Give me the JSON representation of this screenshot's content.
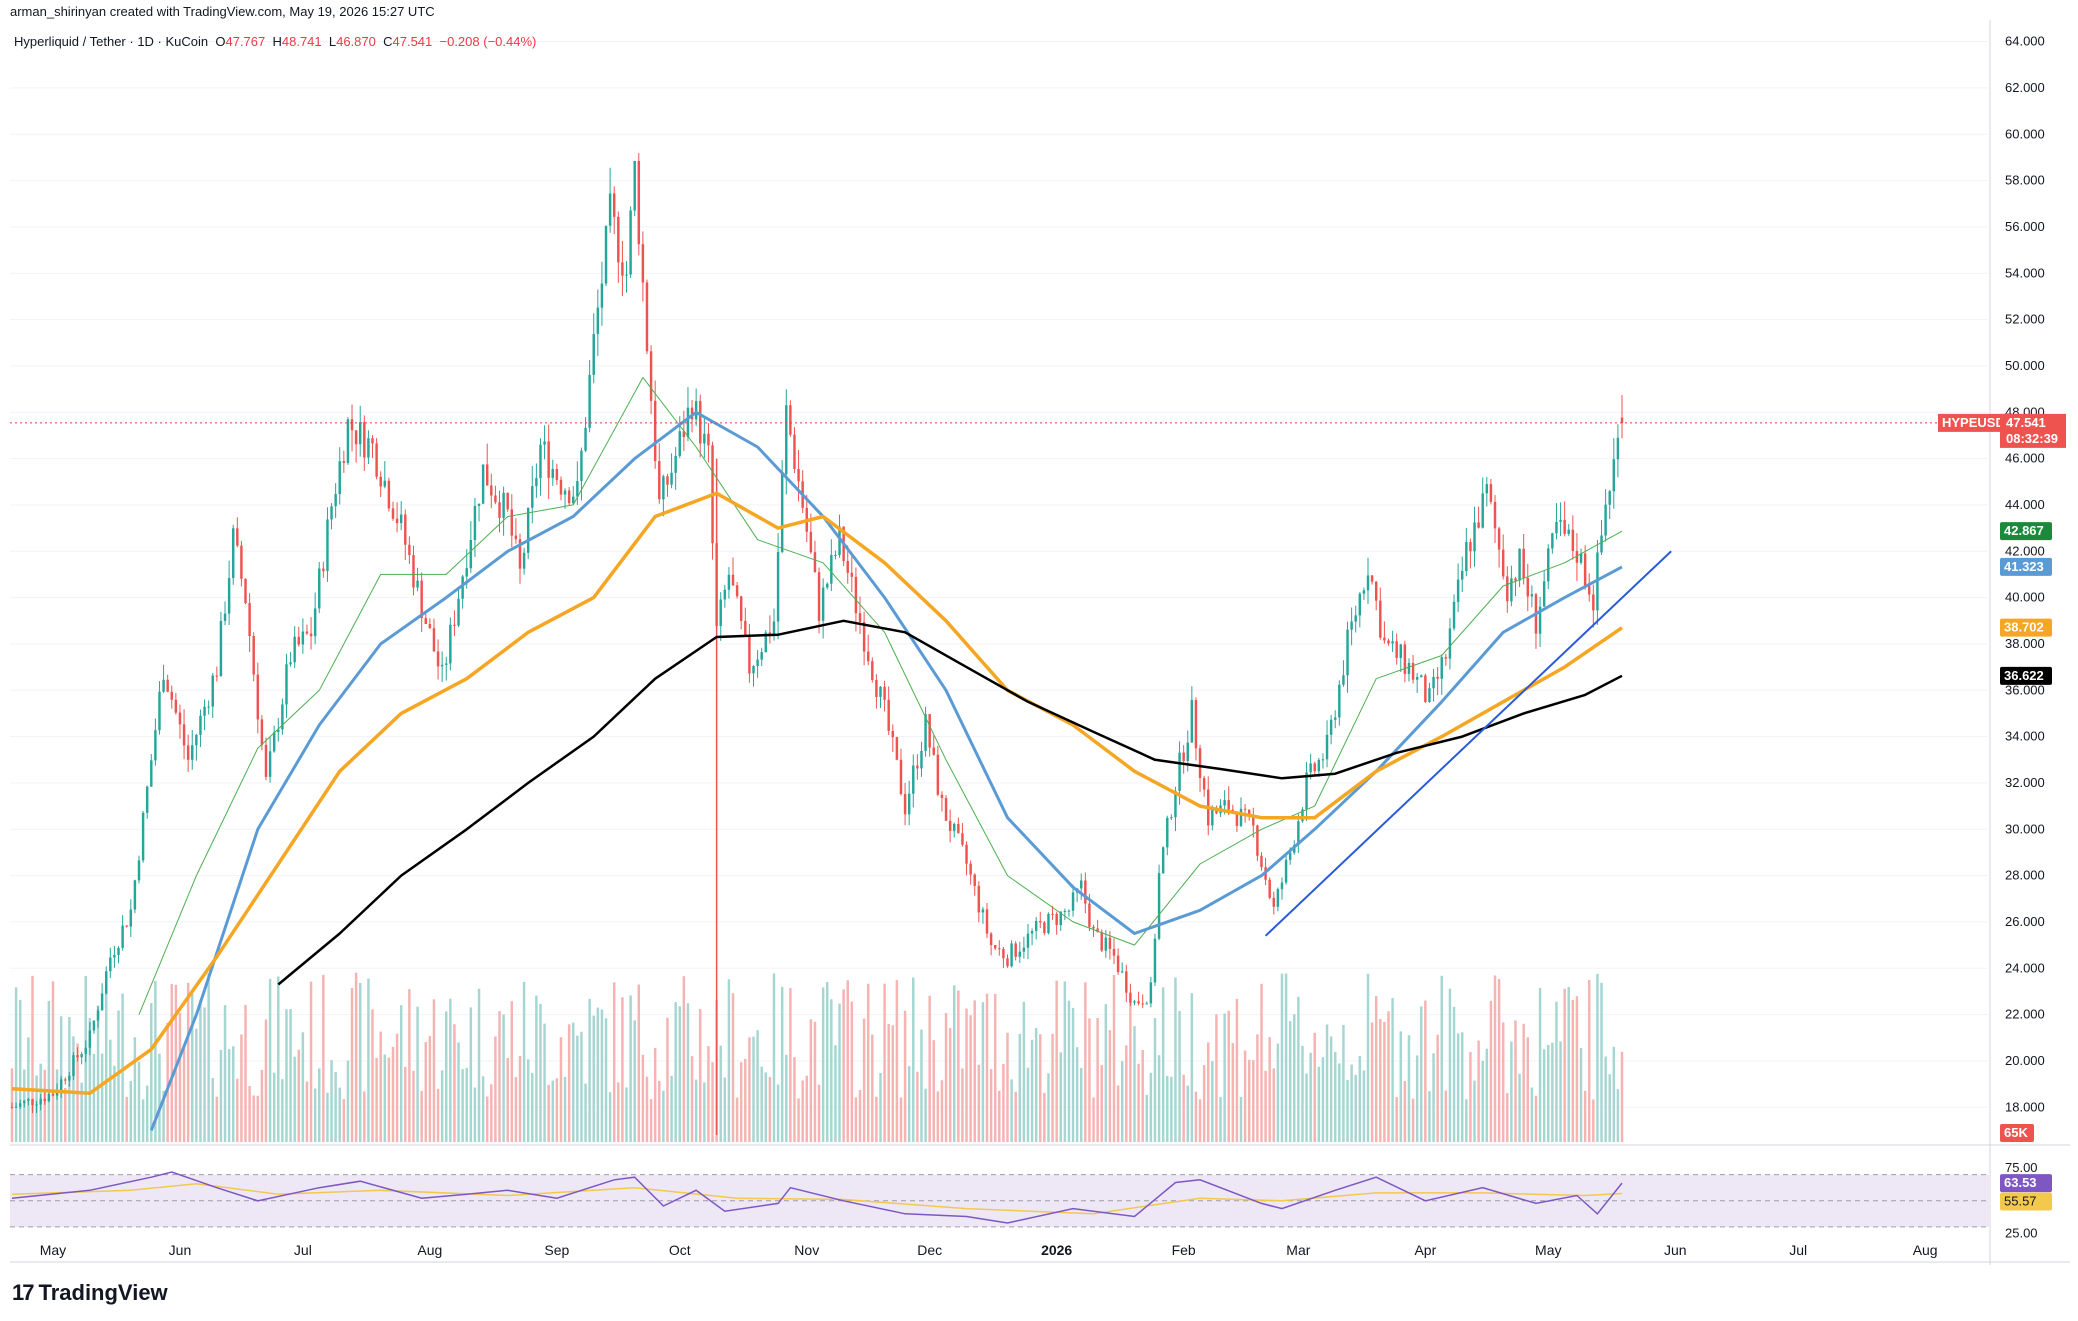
{
  "header": {
    "attribution": "arman_shirinyan created with TradingView.com, May 19, 2026 15:27 UTC"
  },
  "symbol": {
    "name": "Hyperliquid / Tether · 1D · KuCoin",
    "o_label": "O",
    "o": "47.767",
    "h_label": "H",
    "h": "48.741",
    "l_label": "L",
    "l": "46.870",
    "c_label": "C",
    "c": "47.541",
    "change": "−0.208 (−0.44%)"
  },
  "brand": {
    "logo_glyph": "17",
    "name": "TradingView"
  },
  "colors": {
    "up": "#26a69a",
    "down": "#ef5350",
    "ma_thin": "#4caf50",
    "ma_blue": "#5b9bd5",
    "ma_orange": "#f5a623",
    "ma_black": "#000000",
    "trendline": "#2a5bd7",
    "rsi": "#7e57c2",
    "rsi_ma": "#f2c94c",
    "rsi_band": "#ede7f6"
  },
  "chart_data": {
    "type": "candlestick",
    "symbol": "HYPEUSDT",
    "timeframe": "1D",
    "ylim": [
      16.5,
      64.5
    ],
    "y_ticks": [
      "64.000",
      "62.000",
      "60.000",
      "58.000",
      "56.000",
      "54.000",
      "52.000",
      "50.000",
      "48.000",
      "46.000",
      "44.000",
      "42.000",
      "40.000",
      "38.000",
      "36.000",
      "34.000",
      "32.000",
      "30.000",
      "28.000",
      "26.000",
      "24.000",
      "22.000",
      "20.000",
      "18.000"
    ],
    "x_labels": [
      "May",
      "Jun",
      "Jul",
      "Aug",
      "Sep",
      "Oct",
      "Nov",
      "Dec",
      "2026",
      "Feb",
      "Mar",
      "Apr",
      "May",
      "Jun",
      "Jul",
      "Aug"
    ],
    "x_label_dates": [
      "2025-05-01",
      "2025-06-01",
      "2025-07-01",
      "2025-08-01",
      "2025-09-01",
      "2025-10-01",
      "2025-11-01",
      "2025-12-01",
      "2026-01-01",
      "2026-02-01",
      "2026-03-01",
      "2026-04-01",
      "2026-05-01",
      "2026-06-01",
      "2026-07-01",
      "2026-08-01"
    ],
    "price_keypoints": [
      [
        "2025-04-21",
        18.0
      ],
      [
        "2025-05-01",
        18.6
      ],
      [
        "2025-05-10",
        21.0
      ],
      [
        "2025-05-15",
        24.5
      ],
      [
        "2025-05-20",
        26.5
      ],
      [
        "2025-05-25",
        33.0
      ],
      [
        "2025-05-28",
        37.0
      ],
      [
        "2025-06-03",
        33.0
      ],
      [
        "2025-06-10",
        37.0
      ],
      [
        "2025-06-14",
        42.5
      ],
      [
        "2025-06-17",
        40.0
      ],
      [
        "2025-06-22",
        32.0
      ],
      [
        "2025-06-28",
        37.5
      ],
      [
        "2025-07-03",
        38.5
      ],
      [
        "2025-07-08",
        44.0
      ],
      [
        "2025-07-12",
        47.5
      ],
      [
        "2025-07-18",
        46.5
      ],
      [
        "2025-07-25",
        43.0
      ],
      [
        "2025-07-31",
        39.0
      ],
      [
        "2025-08-04",
        36.5
      ],
      [
        "2025-08-10",
        42.0
      ],
      [
        "2025-08-14",
        45.5
      ],
      [
        "2025-08-20",
        43.5
      ],
      [
        "2025-08-23",
        41.0
      ],
      [
        "2025-08-28",
        46.5
      ],
      [
        "2025-09-02",
        45.0
      ],
      [
        "2025-09-06",
        44.5
      ],
      [
        "2025-09-10",
        51.0
      ],
      [
        "2025-09-14",
        56.5
      ],
      [
        "2025-09-18",
        54.0
      ],
      [
        "2025-09-20",
        58.5
      ],
      [
        "2025-09-23",
        51.0
      ],
      [
        "2025-09-26",
        44.0
      ],
      [
        "2025-09-29",
        45.5
      ],
      [
        "2025-10-04",
        48.5
      ],
      [
        "2025-10-08",
        46.0
      ],
      [
        "2025-10-10",
        38.5
      ],
      [
        "2025-10-13",
        41.0
      ],
      [
        "2025-10-18",
        37.0
      ],
      [
        "2025-10-24",
        39.0
      ],
      [
        "2025-10-27",
        48.0
      ],
      [
        "2025-10-31",
        44.0
      ],
      [
        "2025-11-04",
        39.5
      ],
      [
        "2025-11-09",
        42.5
      ],
      [
        "2025-11-14",
        39.0
      ],
      [
        "2025-11-20",
        35.0
      ],
      [
        "2025-11-25",
        31.0
      ],
      [
        "2025-11-30",
        34.5
      ],
      [
        "2025-12-04",
        31.0
      ],
      [
        "2025-12-10",
        28.5
      ],
      [
        "2025-12-16",
        25.0
      ],
      [
        "2025-12-20",
        24.5
      ],
      [
        "2025-12-28",
        25.8
      ],
      [
        "2026-01-04",
        26.5
      ],
      [
        "2026-01-07",
        27.5
      ],
      [
        "2026-01-10",
        25.5
      ],
      [
        "2026-01-15",
        24.5
      ],
      [
        "2026-01-20",
        22.5
      ],
      [
        "2026-01-24",
        23.0
      ],
      [
        "2026-01-26",
        28.0
      ],
      [
        "2026-01-30",
        32.0
      ],
      [
        "2026-02-03",
        35.0
      ],
      [
        "2026-02-07",
        30.5
      ],
      [
        "2026-02-12",
        31.0
      ],
      [
        "2026-02-18",
        30.0
      ],
      [
        "2026-02-23",
        26.5
      ],
      [
        "2026-02-27",
        29.0
      ],
      [
        "2026-03-03",
        32.0
      ],
      [
        "2026-03-08",
        33.5
      ],
      [
        "2026-03-13",
        38.0
      ],
      [
        "2026-03-18",
        41.5
      ],
      [
        "2026-03-22",
        38.0
      ],
      [
        "2026-03-28",
        37.0
      ],
      [
        "2026-04-02",
        35.5
      ],
      [
        "2026-04-06",
        37.5
      ],
      [
        "2026-04-11",
        42.0
      ],
      [
        "2026-04-16",
        44.5
      ],
      [
        "2026-04-21",
        40.5
      ],
      [
        "2026-04-24",
        41.5
      ],
      [
        "2026-04-28",
        39.0
      ],
      [
        "2026-05-03",
        43.0
      ],
      [
        "2026-05-08",
        42.0
      ],
      [
        "2026-05-12",
        40.0
      ],
      [
        "2026-05-15",
        44.0
      ],
      [
        "2026-05-19",
        47.541
      ]
    ],
    "moving_averages": [
      {
        "name": "",
        "color_key": "ma_thin",
        "last": "42.867",
        "points": [
          [
            "2025-05-22",
            22.0
          ],
          [
            "2025-06-05",
            28.0
          ],
          [
            "2025-06-20",
            33.5
          ],
          [
            "2025-07-05",
            36.0
          ],
          [
            "2025-07-20",
            41.0
          ],
          [
            "2025-08-05",
            41.0
          ],
          [
            "2025-08-20",
            43.5
          ],
          [
            "2025-09-05",
            44.0
          ],
          [
            "2025-09-22",
            49.5
          ],
          [
            "2025-10-05",
            46.5
          ],
          [
            "2025-10-20",
            42.5
          ],
          [
            "2025-11-05",
            41.5
          ],
          [
            "2025-11-20",
            38.5
          ],
          [
            "2025-12-05",
            33.0
          ],
          [
            "2025-12-20",
            28.0
          ],
          [
            "2026-01-05",
            26.0
          ],
          [
            "2026-01-20",
            25.0
          ],
          [
            "2026-02-05",
            28.5
          ],
          [
            "2026-02-20",
            30.0
          ],
          [
            "2026-03-05",
            31.0
          ],
          [
            "2026-03-20",
            36.5
          ],
          [
            "2026-04-05",
            37.5
          ],
          [
            "2026-04-20",
            40.5
          ],
          [
            "2026-05-05",
            41.5
          ],
          [
            "2026-05-19",
            42.867
          ]
        ]
      },
      {
        "name": "",
        "color_key": "ma_blue",
        "last": "41.323",
        "points": [
          [
            "2025-05-25",
            17.0
          ],
          [
            "2025-06-05",
            22.0
          ],
          [
            "2025-06-20",
            30.0
          ],
          [
            "2025-07-05",
            34.5
          ],
          [
            "2025-07-20",
            38.0
          ],
          [
            "2025-08-05",
            40.0
          ],
          [
            "2025-08-20",
            42.0
          ],
          [
            "2025-09-05",
            43.5
          ],
          [
            "2025-09-20",
            46.0
          ],
          [
            "2025-10-05",
            48.0
          ],
          [
            "2025-10-20",
            46.5
          ],
          [
            "2025-11-05",
            43.5
          ],
          [
            "2025-11-20",
            40.0
          ],
          [
            "2025-12-05",
            36.0
          ],
          [
            "2025-12-20",
            30.5
          ],
          [
            "2026-01-05",
            27.5
          ],
          [
            "2026-01-20",
            25.5
          ],
          [
            "2026-02-05",
            26.5
          ],
          [
            "2026-02-20",
            28.0
          ],
          [
            "2026-03-05",
            30.0
          ],
          [
            "2026-03-20",
            32.5
          ],
          [
            "2026-04-05",
            35.5
          ],
          [
            "2026-04-20",
            38.5
          ],
          [
            "2026-05-05",
            40.0
          ],
          [
            "2026-05-19",
            41.323
          ]
        ]
      },
      {
        "name": "",
        "color_key": "ma_orange",
        "last": "38.702",
        "points": [
          [
            "2025-04-21",
            18.8
          ],
          [
            "2025-05-10",
            18.6
          ],
          [
            "2025-05-25",
            20.5
          ],
          [
            "2025-06-10",
            24.5
          ],
          [
            "2025-06-25",
            28.5
          ],
          [
            "2025-07-10",
            32.5
          ],
          [
            "2025-07-25",
            35.0
          ],
          [
            "2025-08-10",
            36.5
          ],
          [
            "2025-08-25",
            38.5
          ],
          [
            "2025-09-10",
            40.0
          ],
          [
            "2025-09-25",
            43.5
          ],
          [
            "2025-10-10",
            44.5
          ],
          [
            "2025-10-25",
            43.0
          ],
          [
            "2025-11-05",
            43.5
          ],
          [
            "2025-11-20",
            41.5
          ],
          [
            "2025-12-05",
            39.0
          ],
          [
            "2025-12-20",
            36.0
          ],
          [
            "2026-01-05",
            34.5
          ],
          [
            "2026-01-20",
            32.5
          ],
          [
            "2026-02-05",
            31.0
          ],
          [
            "2026-02-20",
            30.5
          ],
          [
            "2026-03-05",
            30.5
          ],
          [
            "2026-03-20",
            32.5
          ],
          [
            "2026-04-05",
            34.0
          ],
          [
            "2026-04-20",
            35.5
          ],
          [
            "2026-05-05",
            37.0
          ],
          [
            "2026-05-19",
            38.702
          ]
        ]
      },
      {
        "name": "",
        "color_key": "ma_black",
        "last": "36.622",
        "points": [
          [
            "2025-06-25",
            23.3
          ],
          [
            "2025-07-10",
            25.5
          ],
          [
            "2025-07-25",
            28.0
          ],
          [
            "2025-08-10",
            30.0
          ],
          [
            "2025-08-25",
            32.0
          ],
          [
            "2025-09-10",
            34.0
          ],
          [
            "2025-09-25",
            36.5
          ],
          [
            "2025-10-10",
            38.3
          ],
          [
            "2025-10-25",
            38.4
          ],
          [
            "2025-11-10",
            39.0
          ],
          [
            "2025-11-25",
            38.5
          ],
          [
            "2025-12-10",
            37.0
          ],
          [
            "2025-12-25",
            35.5
          ],
          [
            "2026-01-10",
            34.2
          ],
          [
            "2026-01-25",
            33.0
          ],
          [
            "2026-02-10",
            32.6
          ],
          [
            "2026-02-25",
            32.2
          ],
          [
            "2026-03-10",
            32.4
          ],
          [
            "2026-03-25",
            33.3
          ],
          [
            "2026-04-10",
            34.0
          ],
          [
            "2026-04-25",
            35.0
          ],
          [
            "2026-05-10",
            35.8
          ],
          [
            "2026-05-19",
            36.622
          ]
        ]
      }
    ],
    "trendline": [
      [
        "2026-02-21",
        25.4
      ],
      [
        "2026-05-31",
        42.0
      ]
    ],
    "price_tags": [
      {
        "label": "HYPEUSDT",
        "value": "47.541",
        "timer": "08:32:39",
        "y": 47.541,
        "color_key": "down"
      },
      {
        "label": "",
        "value": "42.867",
        "y": 42.867,
        "bg": "#1b8a3a"
      },
      {
        "label": "",
        "value": "41.323",
        "y": 41.323,
        "bg": "#5b9bd5"
      },
      {
        "label": "",
        "value": "38.702",
        "y": 38.702,
        "bg": "#f5a623"
      },
      {
        "label": "",
        "value": "36.622",
        "y": 36.622,
        "bg": "#000000"
      }
    ],
    "volume": {
      "last_label": "65K"
    },
    "rsi": {
      "ticks": [
        "75.00",
        "25.00"
      ],
      "value": "63.53",
      "ma_value": "55.57",
      "points": [
        [
          "2025-04-21",
          52
        ],
        [
          "2025-05-10",
          58
        ],
        [
          "2025-05-25",
          68
        ],
        [
          "2025-05-30",
          72
        ],
        [
          "2025-06-10",
          60
        ],
        [
          "2025-06-20",
          50
        ],
        [
          "2025-07-05",
          60
        ],
        [
          "2025-07-15",
          65
        ],
        [
          "2025-07-30",
          52
        ],
        [
          "2025-08-10",
          55
        ],
        [
          "2025-08-20",
          58
        ],
        [
          "2025-09-01",
          52
        ],
        [
          "2025-09-15",
          66
        ],
        [
          "2025-09-20",
          68
        ],
        [
          "2025-09-27",
          46
        ],
        [
          "2025-10-05",
          58
        ],
        [
          "2025-10-12",
          42
        ],
        [
          "2025-10-25",
          48
        ],
        [
          "2025-10-28",
          60
        ],
        [
          "2025-11-10",
          50
        ],
        [
          "2025-11-25",
          40
        ],
        [
          "2025-12-10",
          38
        ],
        [
          "2025-12-20",
          33
        ],
        [
          "2026-01-05",
          44
        ],
        [
          "2026-01-20",
          38
        ],
        [
          "2026-01-30",
          64
        ],
        [
          "2026-02-05",
          66
        ],
        [
          "2026-02-20",
          48
        ],
        [
          "2026-02-25",
          44
        ],
        [
          "2026-03-10",
          58
        ],
        [
          "2026-03-20",
          68
        ],
        [
          "2026-04-01",
          50
        ],
        [
          "2026-04-15",
          60
        ],
        [
          "2026-04-28",
          48
        ],
        [
          "2026-05-08",
          54
        ],
        [
          "2026-05-13",
          40
        ],
        [
          "2026-05-19",
          63.53
        ]
      ],
      "ma_points": [
        [
          "2025-04-21",
          55
        ],
        [
          "2025-05-20",
          58
        ],
        [
          "2025-06-05",
          63
        ],
        [
          "2025-06-25",
          55
        ],
        [
          "2025-07-20",
          58
        ],
        [
          "2025-08-20",
          54
        ],
        [
          "2025-09-20",
          60
        ],
        [
          "2025-10-15",
          52
        ],
        [
          "2025-11-10",
          51
        ],
        [
          "2025-12-10",
          44
        ],
        [
          "2026-01-10",
          40
        ],
        [
          "2026-02-05",
          52
        ],
        [
          "2026-02-25",
          50
        ],
        [
          "2026-03-20",
          56
        ],
        [
          "2026-04-15",
          56
        ],
        [
          "2026-05-10",
          54
        ],
        [
          "2026-05-19",
          55.57
        ]
      ]
    }
  }
}
